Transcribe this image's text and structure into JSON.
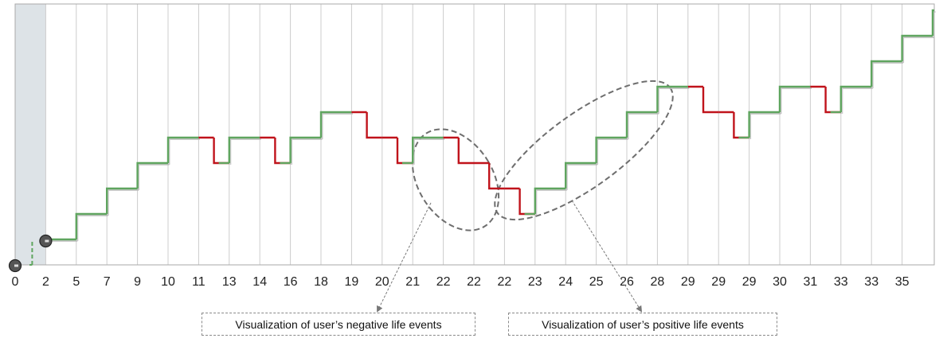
{
  "chart_data": {
    "type": "line",
    "subtype": "step",
    "title": "",
    "xlabel": "",
    "ylabel": "",
    "x_tick_labels": [
      "0",
      "2",
      "5",
      "7",
      "9",
      "10",
      "11",
      "13",
      "14",
      "16",
      "18",
      "19",
      "20",
      "21",
      "22",
      "22",
      "22",
      "23",
      "24",
      "25",
      "26",
      "28",
      "29",
      "29",
      "29",
      "30",
      "31",
      "33",
      "33",
      "35"
    ],
    "ylim": [
      0,
      10
    ],
    "grid": "vertical",
    "shaded_region": {
      "from_step": 0,
      "to_step": 1
    },
    "start_markers": [
      {
        "step": 0,
        "level": 0
      },
      {
        "step": 1,
        "level": 1
      }
    ],
    "steps": [
      {
        "level": 1,
        "event": "start"
      },
      {
        "level": 2,
        "event": "positive"
      },
      {
        "level": 3,
        "event": "positive"
      },
      {
        "level": 4,
        "event": "positive"
      },
      {
        "level": 5,
        "event": "positive"
      },
      {
        "level": 4,
        "event": "negative"
      },
      {
        "level": 5,
        "event": "positive"
      },
      {
        "level": 4,
        "event": "negative"
      },
      {
        "level": 5,
        "event": "positive"
      },
      {
        "level": 6,
        "event": "positive"
      },
      {
        "level": 5,
        "event": "negative"
      },
      {
        "level": 4,
        "event": "negative"
      },
      {
        "level": 5,
        "event": "positive"
      },
      {
        "level": 4,
        "event": "negative"
      },
      {
        "level": 3,
        "event": "negative"
      },
      {
        "level": 2,
        "event": "negative"
      },
      {
        "level": 3,
        "event": "positive"
      },
      {
        "level": 4,
        "event": "positive"
      },
      {
        "level": 5,
        "event": "positive"
      },
      {
        "level": 6,
        "event": "positive"
      },
      {
        "level": 7,
        "event": "positive"
      },
      {
        "level": 6,
        "event": "negative"
      },
      {
        "level": 5,
        "event": "negative"
      },
      {
        "level": 6,
        "event": "positive"
      },
      {
        "level": 7,
        "event": "positive"
      },
      {
        "level": 6,
        "event": "negative"
      },
      {
        "level": 7,
        "event": "positive"
      },
      {
        "level": 8,
        "event": "positive"
      },
      {
        "level": 9,
        "event": "positive"
      },
      {
        "level": 10,
        "event": "positive"
      }
    ],
    "colors": {
      "positive": "#5fa55f",
      "negative": "#c0131b",
      "grid": "#cccccc",
      "shade": "#dde3e7",
      "marker": "#555555",
      "start_line": "#5fa55f"
    },
    "callouts": [
      {
        "text": "Visualization of user’s negative life events",
        "from_step": 12,
        "to_step": 15
      },
      {
        "text": "Visualization of user’s positive life events",
        "from_step": 15,
        "to_step": 20
      }
    ]
  }
}
